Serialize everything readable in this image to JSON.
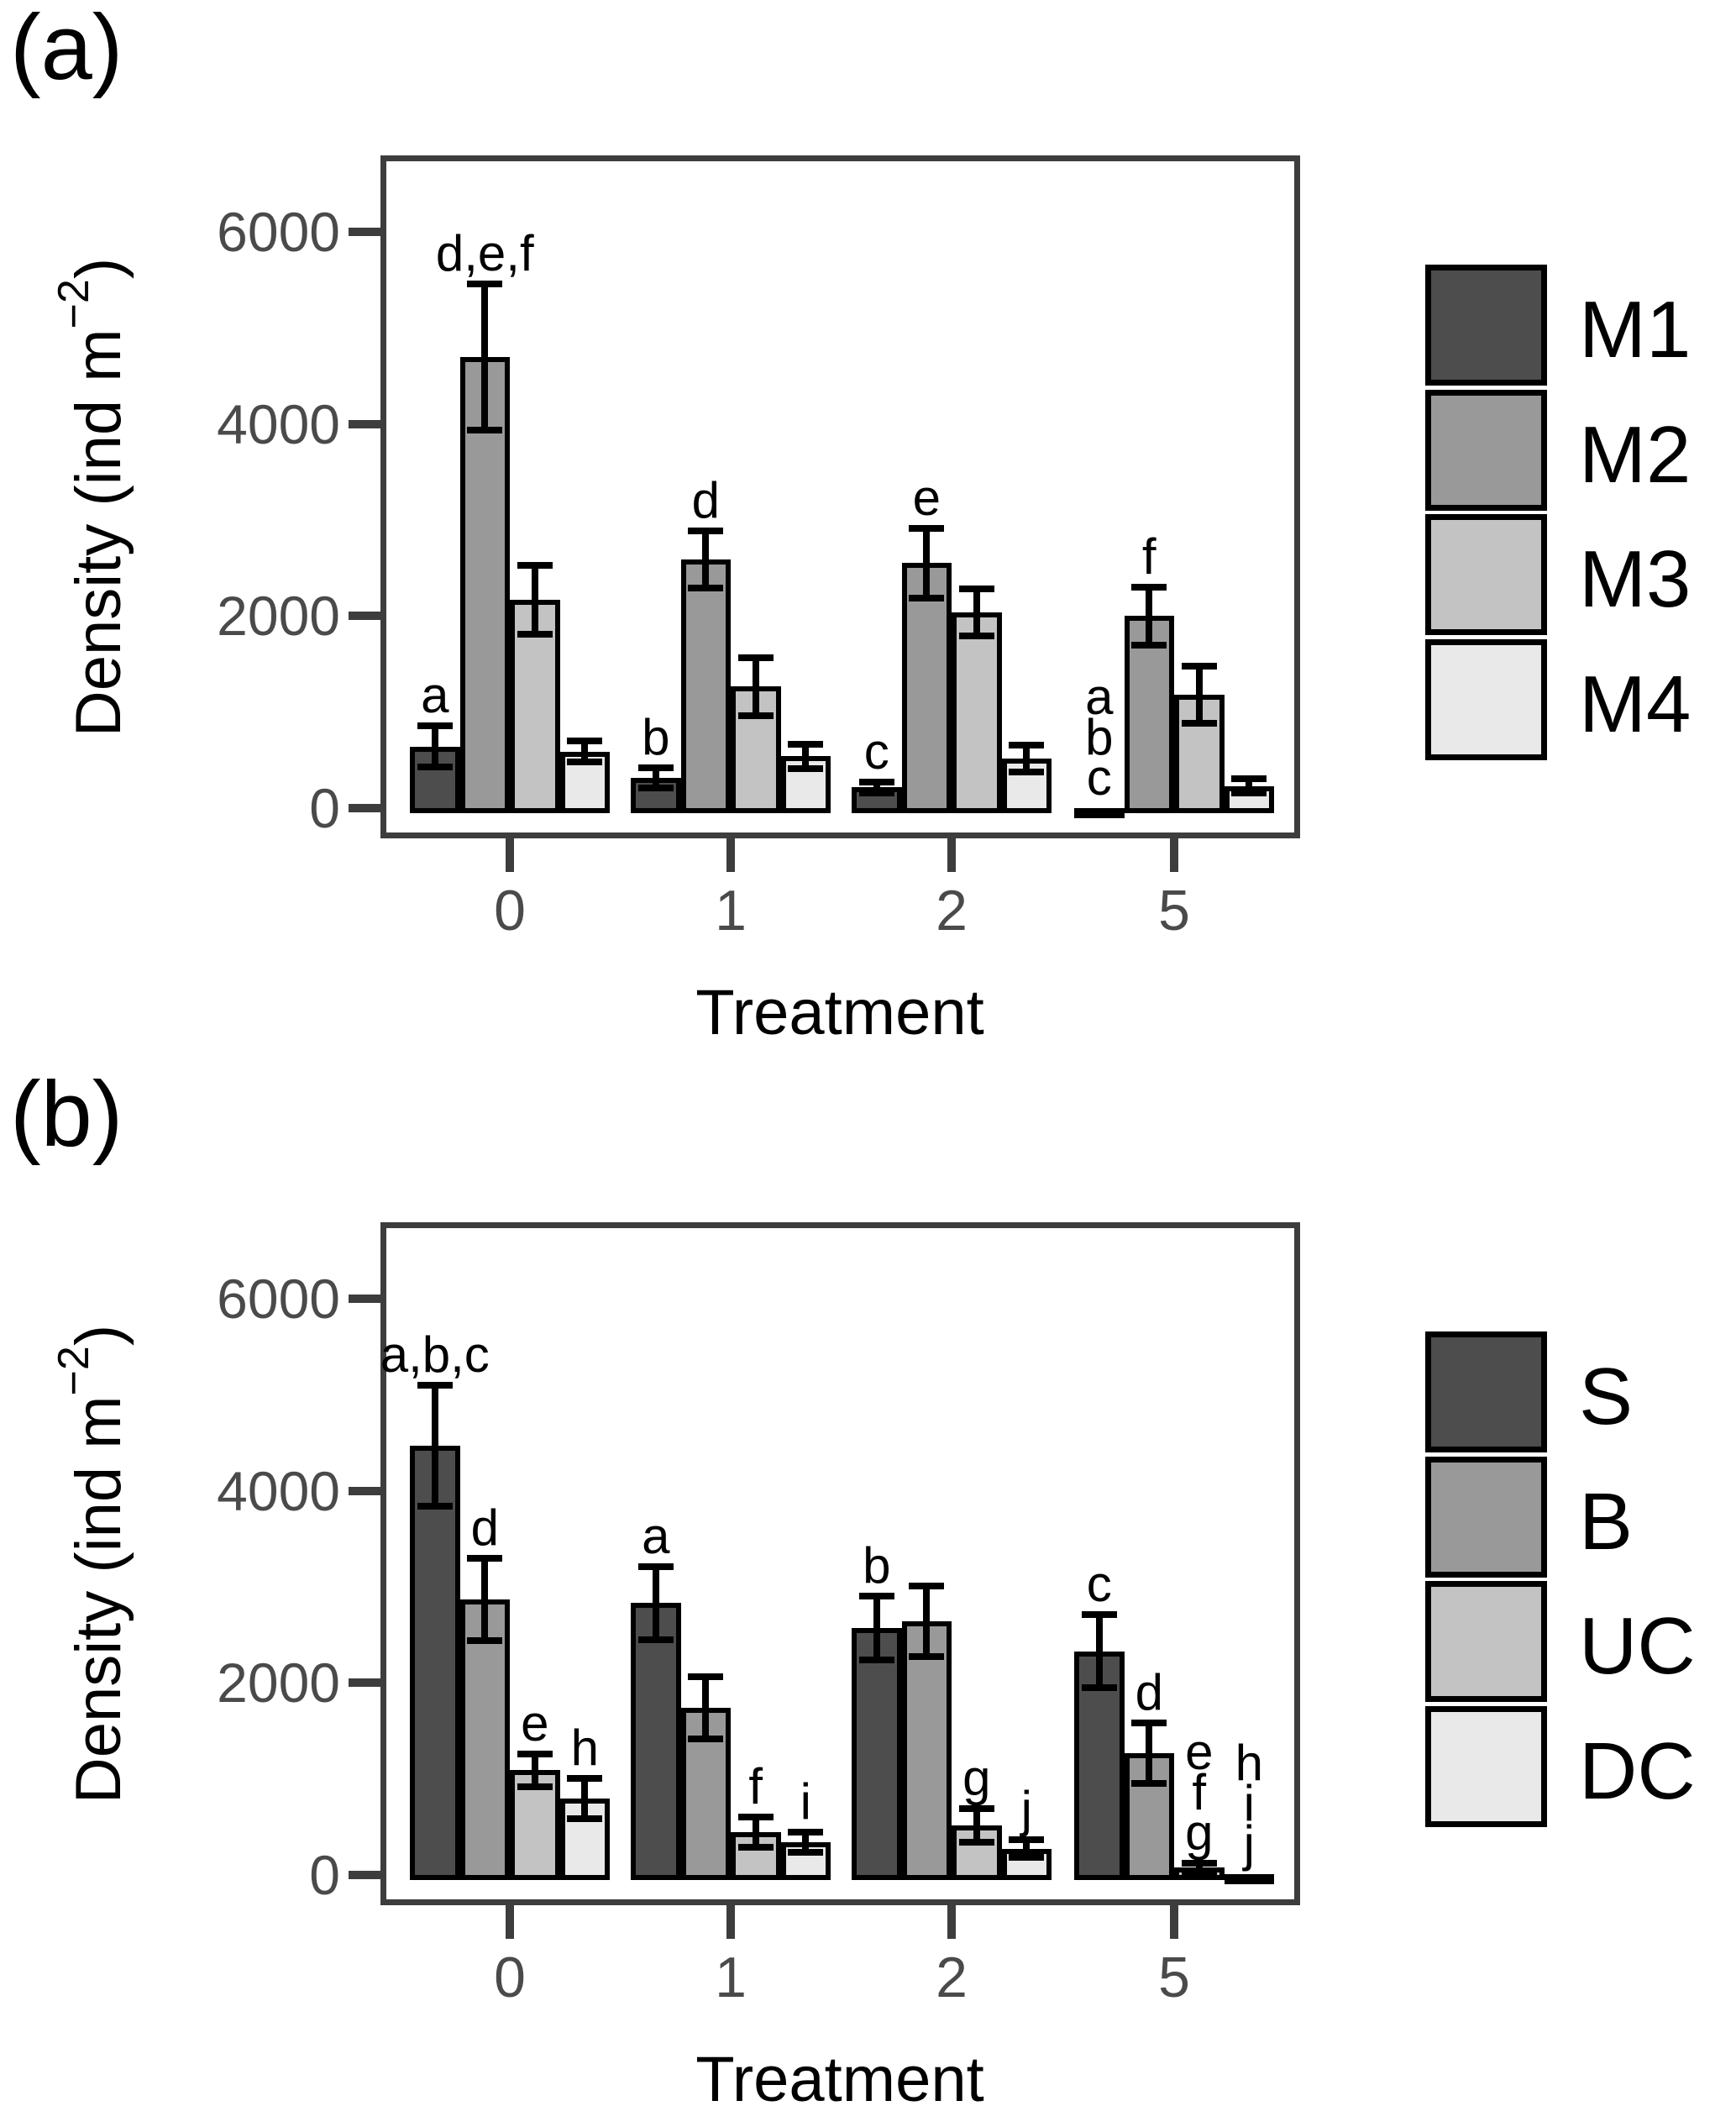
{
  "figure": {
    "background": "#ffffff",
    "axis_color": "#3d3d3d",
    "tick_text_color": "#4a4a4a"
  },
  "chart_data": [
    {
      "type": "bar",
      "panel_label": "(a)",
      "ylabel_pre": "Density (ind m",
      "ylabel_sup": "−2",
      "ylabel_post": ")",
      "xlabel": "Treatment",
      "yticks": [
        6000,
        4000,
        2000,
        0
      ],
      "ylim": [
        0,
        6800
      ],
      "grid": "off",
      "legend_position": "right",
      "categories": [
        "0",
        "1",
        "2",
        "5"
      ],
      "series": [
        {
          "name": "M1",
          "color": "#4d4d4d",
          "values": [
            640,
            315,
            215,
            0
          ],
          "errors": [
            215,
            105,
            60,
            0
          ],
          "sig_labels": [
            [
              "a"
            ],
            [
              "b"
            ],
            [
              "c"
            ],
            [
              "a",
              "b",
              "c"
            ]
          ]
        },
        {
          "name": "M2",
          "color": "#999999",
          "values": [
            4700,
            2590,
            2550,
            2000
          ],
          "errors": [
            760,
            300,
            365,
            300
          ],
          "sig_labels": [
            [
              "d,e,f"
            ],
            [
              "d"
            ],
            [
              "e"
            ],
            [
              "f"
            ]
          ]
        },
        {
          "name": "M3",
          "color": "#c3c3c3",
          "values": [
            2170,
            1265,
            2040,
            1180
          ],
          "errors": [
            360,
            300,
            245,
            300
          ],
          "sig_labels": [
            [],
            [],
            [],
            []
          ]
        },
        {
          "name": "M4",
          "color": "#e9e9e9",
          "values": [
            590,
            540,
            515,
            230
          ],
          "errors": [
            110,
            125,
            140,
            75
          ],
          "sig_labels": [
            [],
            [],
            [],
            []
          ]
        }
      ]
    },
    {
      "type": "bar",
      "panel_label": "(b)",
      "ylabel_pre": "Density (ind m",
      "ylabel_sup": "−2",
      "ylabel_post": ")",
      "xlabel": "Treatment",
      "yticks": [
        6000,
        4000,
        2000,
        0
      ],
      "ylim": [
        0,
        6800
      ],
      "grid": "off",
      "legend_position": "right",
      "categories": [
        "0",
        "1",
        "2",
        "5"
      ],
      "series": [
        {
          "name": "S",
          "color": "#4d4d4d",
          "values": [
            4470,
            2830,
            2570,
            2330
          ],
          "errors": [
            630,
            380,
            330,
            380
          ],
          "sig_labels": [
            [
              "a,b,c"
            ],
            [
              "a"
            ],
            [
              "b"
            ],
            [
              "c"
            ]
          ]
        },
        {
          "name": "B",
          "color": "#999999",
          "values": [
            2870,
            1740,
            2640,
            1270
          ],
          "errors": [
            430,
            320,
            370,
            315
          ],
          "sig_labels": [
            [
              "d"
            ],
            [],
            [],
            [
              "d"
            ]
          ]
        },
        {
          "name": "UC",
          "color": "#c3c3c3",
          "values": [
            1090,
            445,
            520,
            75
          ],
          "errors": [
            170,
            160,
            175,
            45
          ],
          "sig_labels": [
            [
              "e"
            ],
            [
              "f"
            ],
            [
              "g"
            ],
            [
              "e",
              "f",
              "g"
            ]
          ]
        },
        {
          "name": "DC",
          "color": "#e9e9e9",
          "values": [
            795,
            345,
            275,
            10
          ],
          "errors": [
            210,
            105,
            90,
            0
          ],
          "sig_labels": [
            [
              "h"
            ],
            [
              "i"
            ],
            [
              "j"
            ],
            [
              "h",
              "i",
              "j"
            ]
          ]
        }
      ]
    }
  ]
}
